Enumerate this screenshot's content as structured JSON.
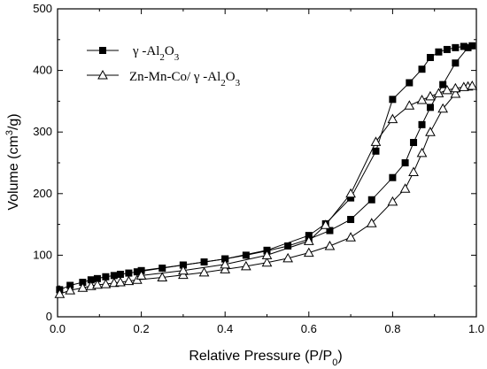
{
  "chart_data": {
    "type": "scatter",
    "xlabel": "Relative Pressure (P/P",
    "xlabel_sub": "0",
    "xlabel_tail": ")",
    "ylabel": "Volume (cm",
    "ylabel_sup": "3",
    "ylabel_tail": "/g)",
    "xlim": [
      0,
      1.0
    ],
    "ylim": [
      0,
      500
    ],
    "xticks": [
      0.0,
      0.2,
      0.4,
      0.6,
      0.8,
      1.0
    ],
    "xtick_labels": [
      "0.0",
      "0.2",
      "0.4",
      "0.6",
      "0.8",
      "1.0"
    ],
    "yticks": [
      0,
      100,
      200,
      300,
      400,
      500
    ],
    "ytick_labels": [
      "0",
      "100",
      "200",
      "300",
      "400",
      "500"
    ],
    "grid": false,
    "legend_position": "top-left",
    "series": [
      {
        "name": "γ -Al2O3",
        "legend_parts": [
          "γ -Al",
          "2",
          "O",
          "3"
        ],
        "marker": "square",
        "adsorption": {
          "x": [
            0.005,
            0.03,
            0.06,
            0.08,
            0.095,
            0.115,
            0.135,
            0.15,
            0.17,
            0.19,
            0.25,
            0.3,
            0.35,
            0.4,
            0.45,
            0.5,
            0.55,
            0.6,
            0.65,
            0.7,
            0.75,
            0.8,
            0.83,
            0.85,
            0.87,
            0.89,
            0.92,
            0.95,
            0.98
          ],
          "y": [
            44,
            51,
            56,
            60,
            62,
            65,
            67,
            69,
            71,
            73,
            79,
            84,
            89,
            94,
            100,
            107,
            115,
            126,
            140,
            158,
            190,
            226,
            250,
            283,
            312,
            340,
            377,
            412,
            437
          ]
        },
        "desorption": {
          "x": [
            0.99,
            0.97,
            0.95,
            0.93,
            0.91,
            0.89,
            0.87,
            0.84,
            0.8,
            0.76,
            0.7,
            0.64,
            0.6,
            0.5,
            0.4,
            0.3,
            0.2
          ],
          "y": [
            440,
            439,
            437,
            434,
            430,
            421,
            402,
            380,
            353,
            269,
            193,
            151,
            132,
            108,
            94,
            84,
            75
          ]
        }
      },
      {
        "name": "Zn-Mn-Co/ γ -Al2O3",
        "legend_parts": [
          "Zn-Mn-Co/ γ -Al",
          "2",
          "O",
          "3"
        ],
        "marker": "triangle",
        "adsorption": {
          "x": [
            0.005,
            0.03,
            0.06,
            0.08,
            0.095,
            0.115,
            0.135,
            0.15,
            0.17,
            0.19,
            0.25,
            0.3,
            0.35,
            0.4,
            0.45,
            0.5,
            0.55,
            0.6,
            0.65,
            0.7,
            0.75,
            0.8,
            0.83,
            0.85,
            0.87,
            0.89,
            0.92,
            0.95,
            0.98
          ],
          "y": [
            37,
            43,
            47,
            50,
            52,
            53,
            55,
            56,
            58,
            60,
            64,
            68,
            72,
            77,
            82,
            88,
            95,
            104,
            115,
            129,
            152,
            187,
            208,
            235,
            266,
            300,
            338,
            362,
            374
          ]
        },
        "desorption": {
          "x": [
            0.99,
            0.97,
            0.95,
            0.93,
            0.91,
            0.89,
            0.87,
            0.84,
            0.8,
            0.76,
            0.7,
            0.64,
            0.6,
            0.5,
            0.4,
            0.3,
            0.2
          ],
          "y": [
            375,
            373,
            371,
            368,
            363,
            358,
            352,
            343,
            321,
            284,
            200,
            149,
            123,
            100,
            85,
            75,
            67
          ]
        }
      }
    ]
  }
}
